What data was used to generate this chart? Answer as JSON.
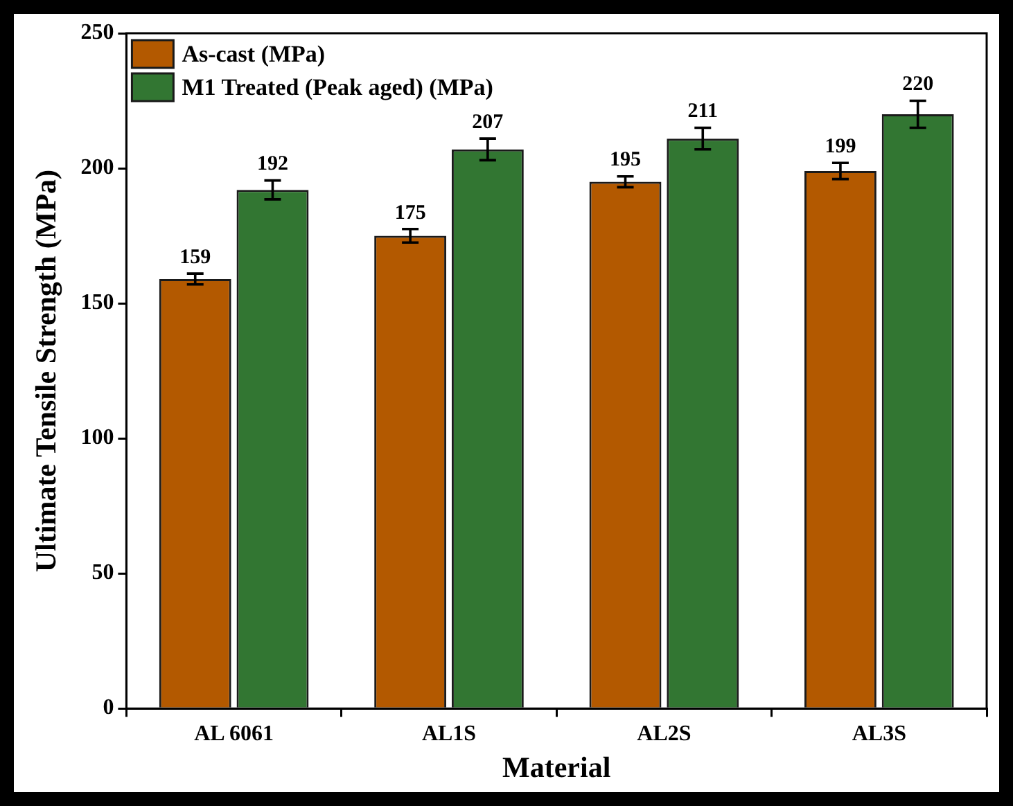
{
  "chart_data": {
    "type": "bar",
    "xlabel": "Material",
    "ylabel": "Ultimate Tensile Strength (MPa)",
    "categories": [
      "AL 6061",
      "AL1S",
      "AL2S",
      "AL3S"
    ],
    "series": [
      {
        "name": "As-cast (MPa)",
        "color": "#b35900",
        "values": [
          159,
          175,
          195,
          199
        ],
        "errors": [
          2,
          2.5,
          2,
          3
        ]
      },
      {
        "name": "M1 Treated (Peak aged) (MPa)",
        "color": "#327632",
        "values": [
          192,
          207,
          211,
          220
        ],
        "errors": [
          3.5,
          4,
          4,
          5
        ]
      }
    ],
    "ylim": [
      0,
      250
    ],
    "yticks": [
      0,
      50,
      100,
      150,
      200,
      250
    ],
    "grid": false,
    "legend": "top left",
    "data_labels": true
  }
}
